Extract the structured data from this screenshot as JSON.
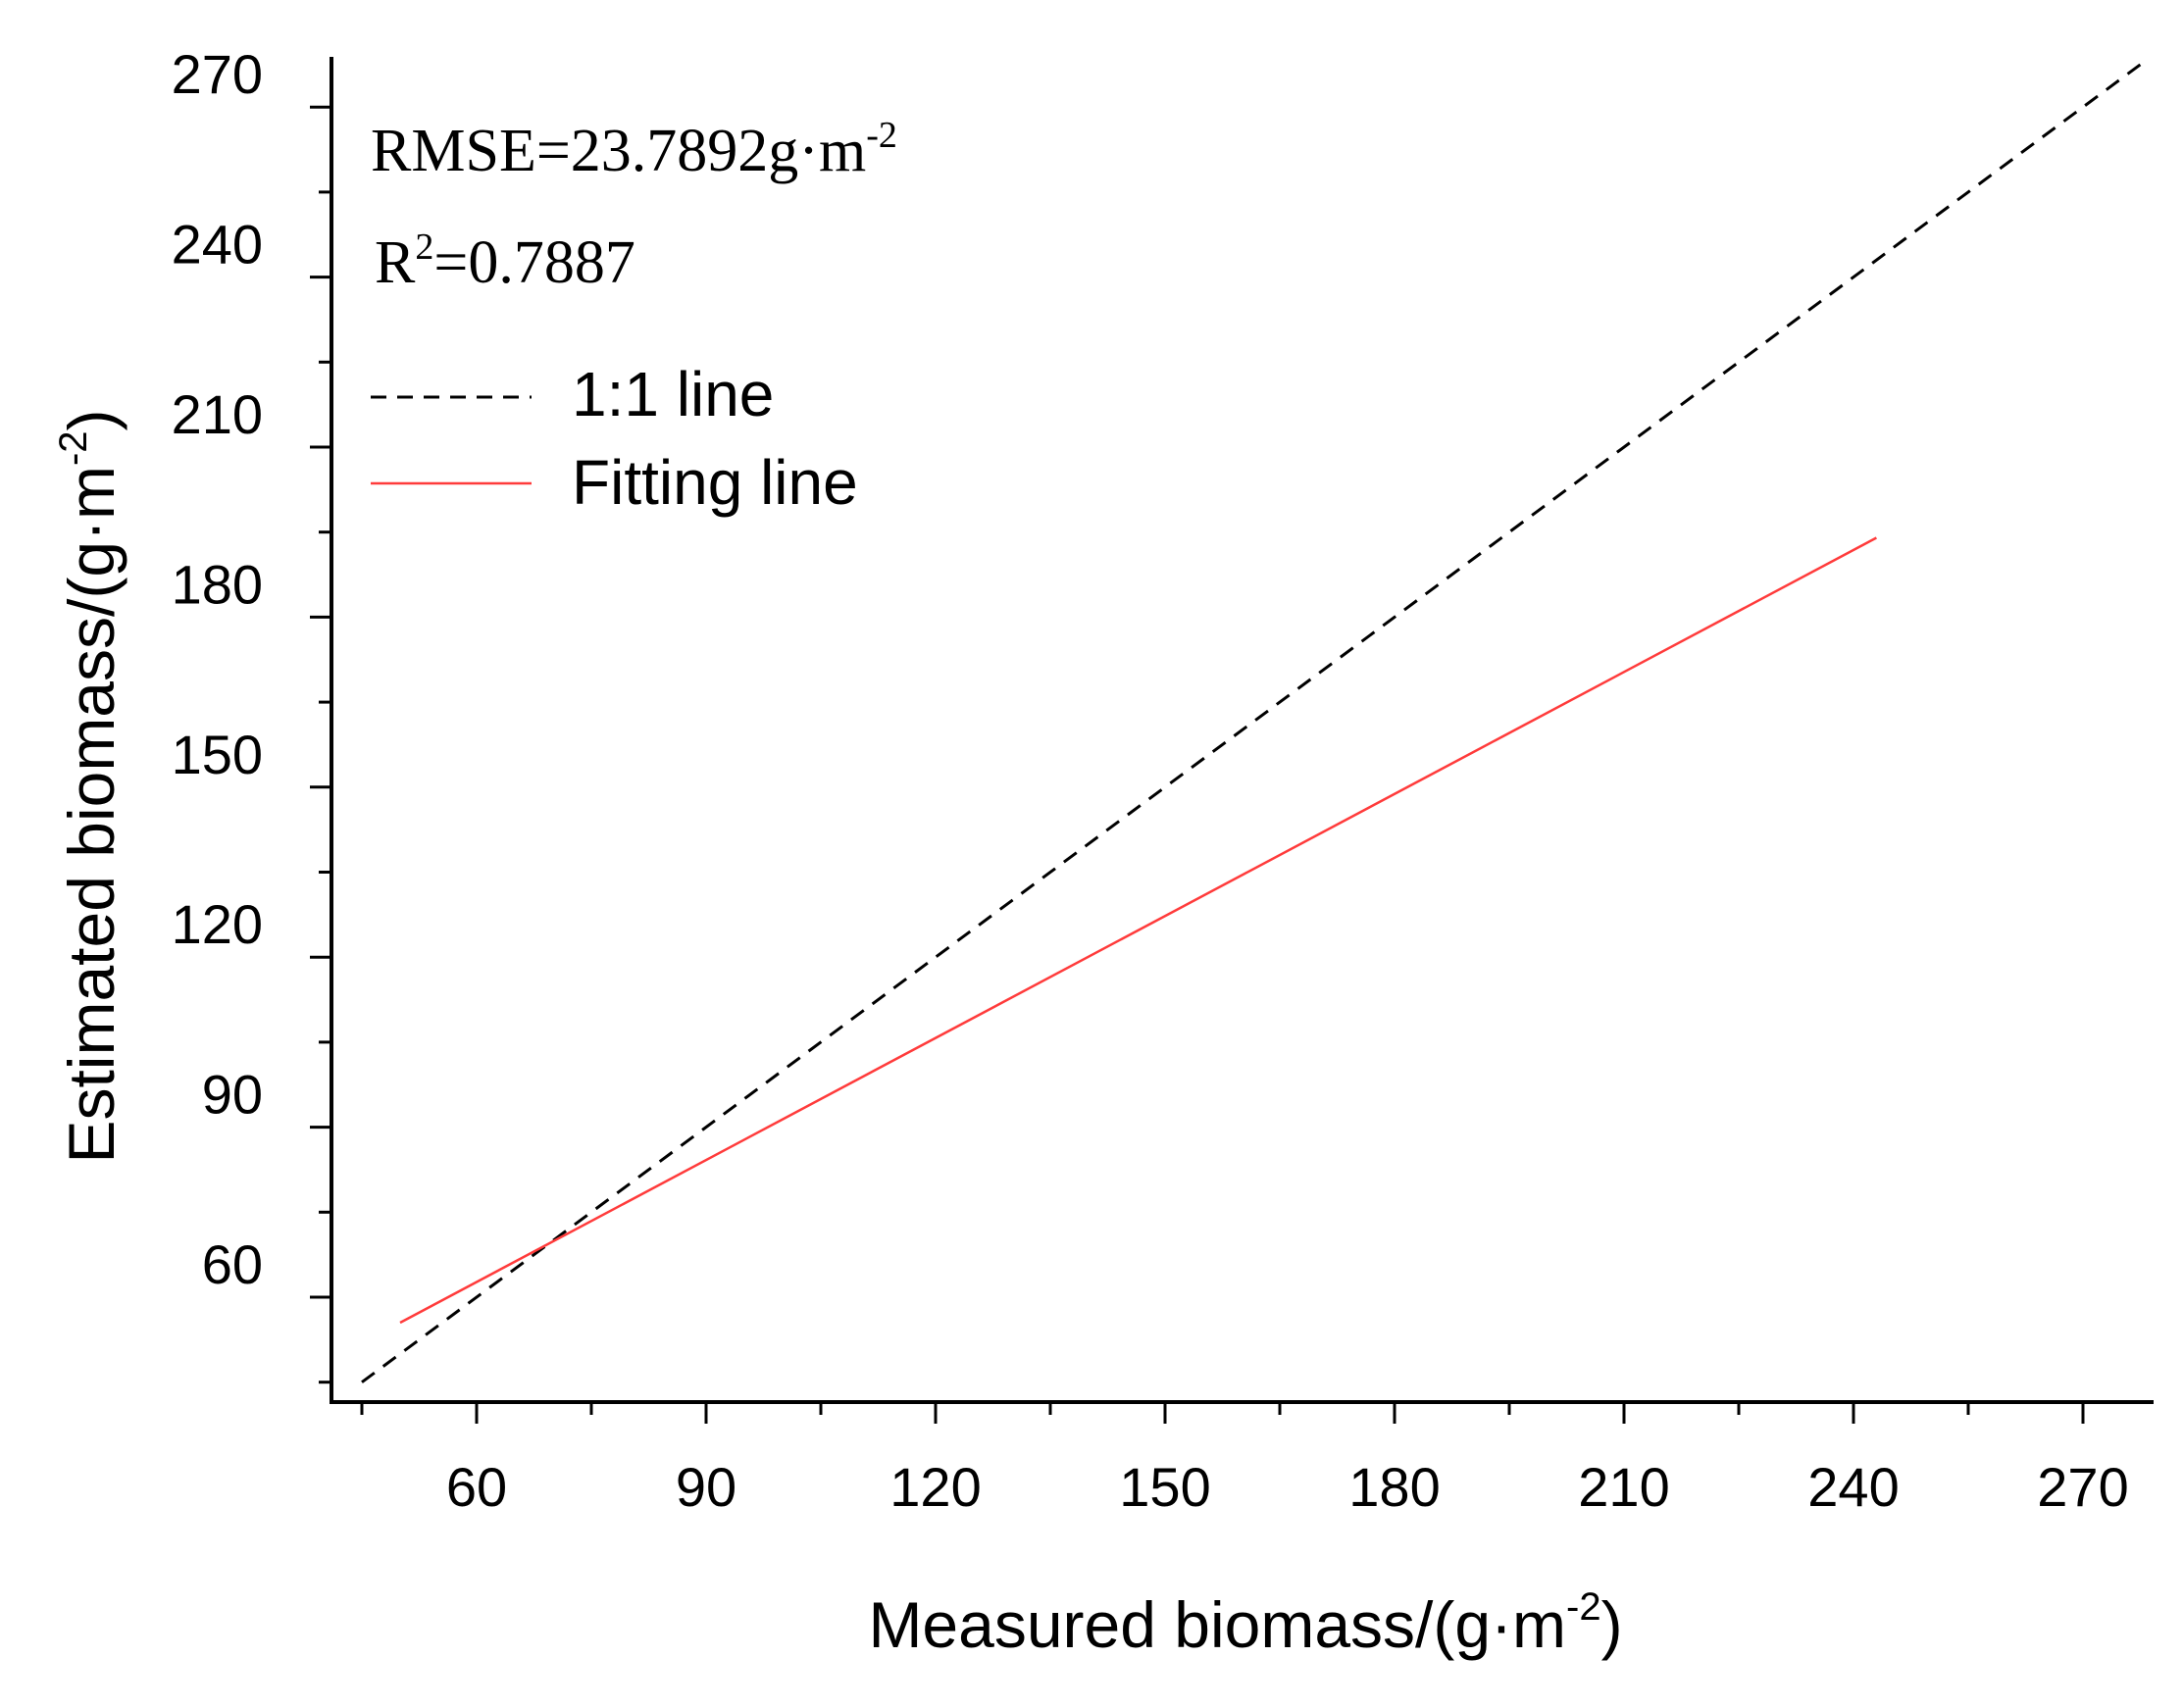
{
  "chart_data": {
    "type": "line",
    "title": "",
    "xlabel_main": "Measured biomass/(g·m",
    "xlabel_sup": "-2",
    "xlabel_close": ")",
    "ylabel_main": "Estimated biomass/(g·m",
    "ylabel_sup": "-2",
    "ylabel_close": ")",
    "xlim": [
      43,
      278
    ],
    "ylim": [
      43,
      280
    ],
    "x_ticks": [
      60,
      90,
      120,
      150,
      180,
      210,
      240,
      270
    ],
    "x_tick_labels": [
      "60",
      "90",
      "120",
      "150",
      "180",
      "210",
      "240",
      "270"
    ],
    "x_minor_ticks": [
      45,
      75,
      105,
      135,
      165,
      195,
      225,
      255
    ],
    "y_ticks": [
      60,
      90,
      120,
      150,
      180,
      210,
      240,
      270
    ],
    "y_tick_labels": [
      "60",
      "90",
      "120",
      "150",
      "180",
      "210",
      "240",
      "270"
    ],
    "y_minor_ticks": [
      45,
      75,
      105,
      135,
      165,
      195,
      225,
      255
    ],
    "series": [
      {
        "name": "1:1 line",
        "style": "dashed",
        "color": "#000000",
        "x": [
          45,
          278
        ],
        "y": [
          45,
          278
        ]
      },
      {
        "name": "Fitting line",
        "style": "solid",
        "color": "#ff3b3b",
        "x": [
          50,
          243
        ],
        "y": [
          55.5,
          194
        ]
      }
    ],
    "annotations": {
      "rmse_prefix": "RMSE=23.7892g·m",
      "rmse_sup": "-2",
      "r2_prefix": "R",
      "r2_sup": "2",
      "r2_value": "=0.7887"
    },
    "legend_position": "top-left",
    "grid": false
  }
}
